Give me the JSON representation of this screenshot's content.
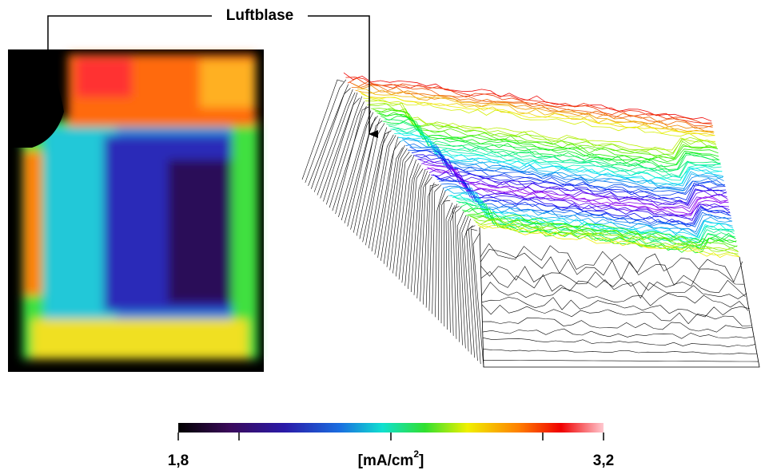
{
  "chart_data": {
    "type": "heatmap",
    "annotation": "Luftblase",
    "colorbar": {
      "label": "[mA/cm²]",
      "clim": [
        1.8,
        3.2
      ],
      "ticks": [
        {
          "value": 1.8,
          "label": "1,8"
        },
        {
          "value": 3.2,
          "label": "3,2"
        }
      ],
      "minor_ticks": [
        2.0,
        2.5,
        3.0
      ]
    }
  }
}
